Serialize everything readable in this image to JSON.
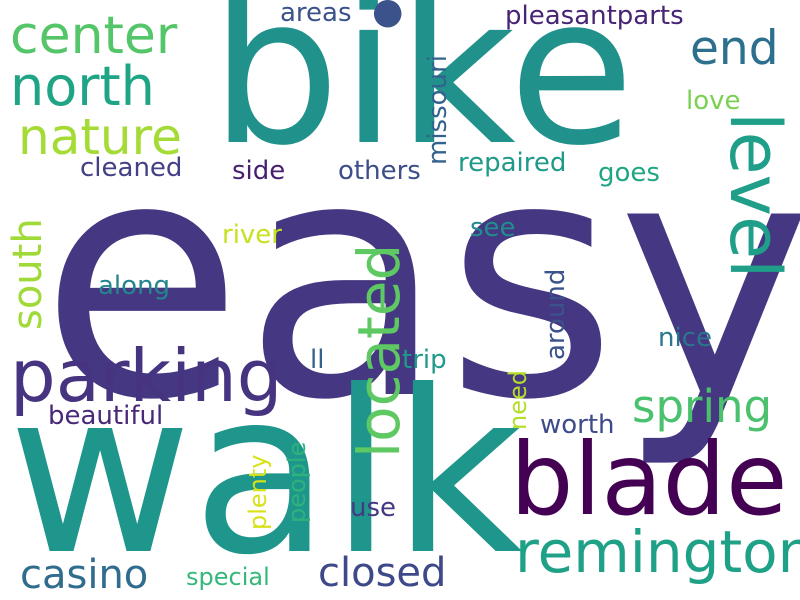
{
  "words": [
    {
      "text": "easy",
      "color": "#453781"
    },
    {
      "text": "bike",
      "color": "#21918c"
    },
    {
      "text": "walk",
      "color": "#1f968b"
    },
    {
      "text": "blade",
      "color": "#440154"
    },
    {
      "text": "parking",
      "color": "#463480"
    },
    {
      "text": "level",
      "color": "#1f9e89"
    },
    {
      "text": "located",
      "color": "#5ec962"
    },
    {
      "text": "remington",
      "color": "#1fa187"
    },
    {
      "text": "center",
      "color": "#54c568"
    },
    {
      "text": "north",
      "color": "#20a486"
    },
    {
      "text": "nature",
      "color": "#a5db36"
    },
    {
      "text": "end",
      "color": "#2d708e"
    },
    {
      "text": "spring",
      "color": "#4ac16d"
    },
    {
      "text": "closed",
      "color": "#3e4989"
    },
    {
      "text": "casino",
      "color": "#2f6c8e"
    },
    {
      "text": "south",
      "color": "#a0da39"
    },
    {
      "text": "pleasantparts",
      "color": "#482475"
    },
    {
      "text": "missouri",
      "color": "#33638d"
    },
    {
      "text": "areas",
      "color": "#3b528b"
    },
    {
      "text": "love",
      "color": "#7ad151"
    },
    {
      "text": "cleaned",
      "color": "#424086"
    },
    {
      "text": "side",
      "color": "#481f70"
    },
    {
      "text": "others",
      "color": "#3d4e8a"
    },
    {
      "text": "repaired",
      "color": "#1f998a"
    },
    {
      "text": "goes",
      "color": "#21a685"
    },
    {
      "text": "river",
      "color": "#c8e020"
    },
    {
      "text": "see",
      "color": "#228c8d"
    },
    {
      "text": "along",
      "color": "#25858e"
    },
    {
      "text": "around",
      "color": "#3b528b"
    },
    {
      "text": "nice",
      "color": "#2a768e"
    },
    {
      "text": "ll",
      "color": "#33638d"
    },
    {
      "text": "trip",
      "color": "#1f9a8a"
    },
    {
      "text": "beautiful",
      "color": "#482878"
    },
    {
      "text": "worth",
      "color": "#3e4a89"
    },
    {
      "text": "need",
      "color": "#b5de2b"
    },
    {
      "text": "plenty",
      "color": "#d8e219"
    },
    {
      "text": "people",
      "color": "#2db27d"
    },
    {
      "text": "use",
      "color": "#443983"
    },
    {
      "text": "special",
      "color": "#35b779"
    }
  ]
}
